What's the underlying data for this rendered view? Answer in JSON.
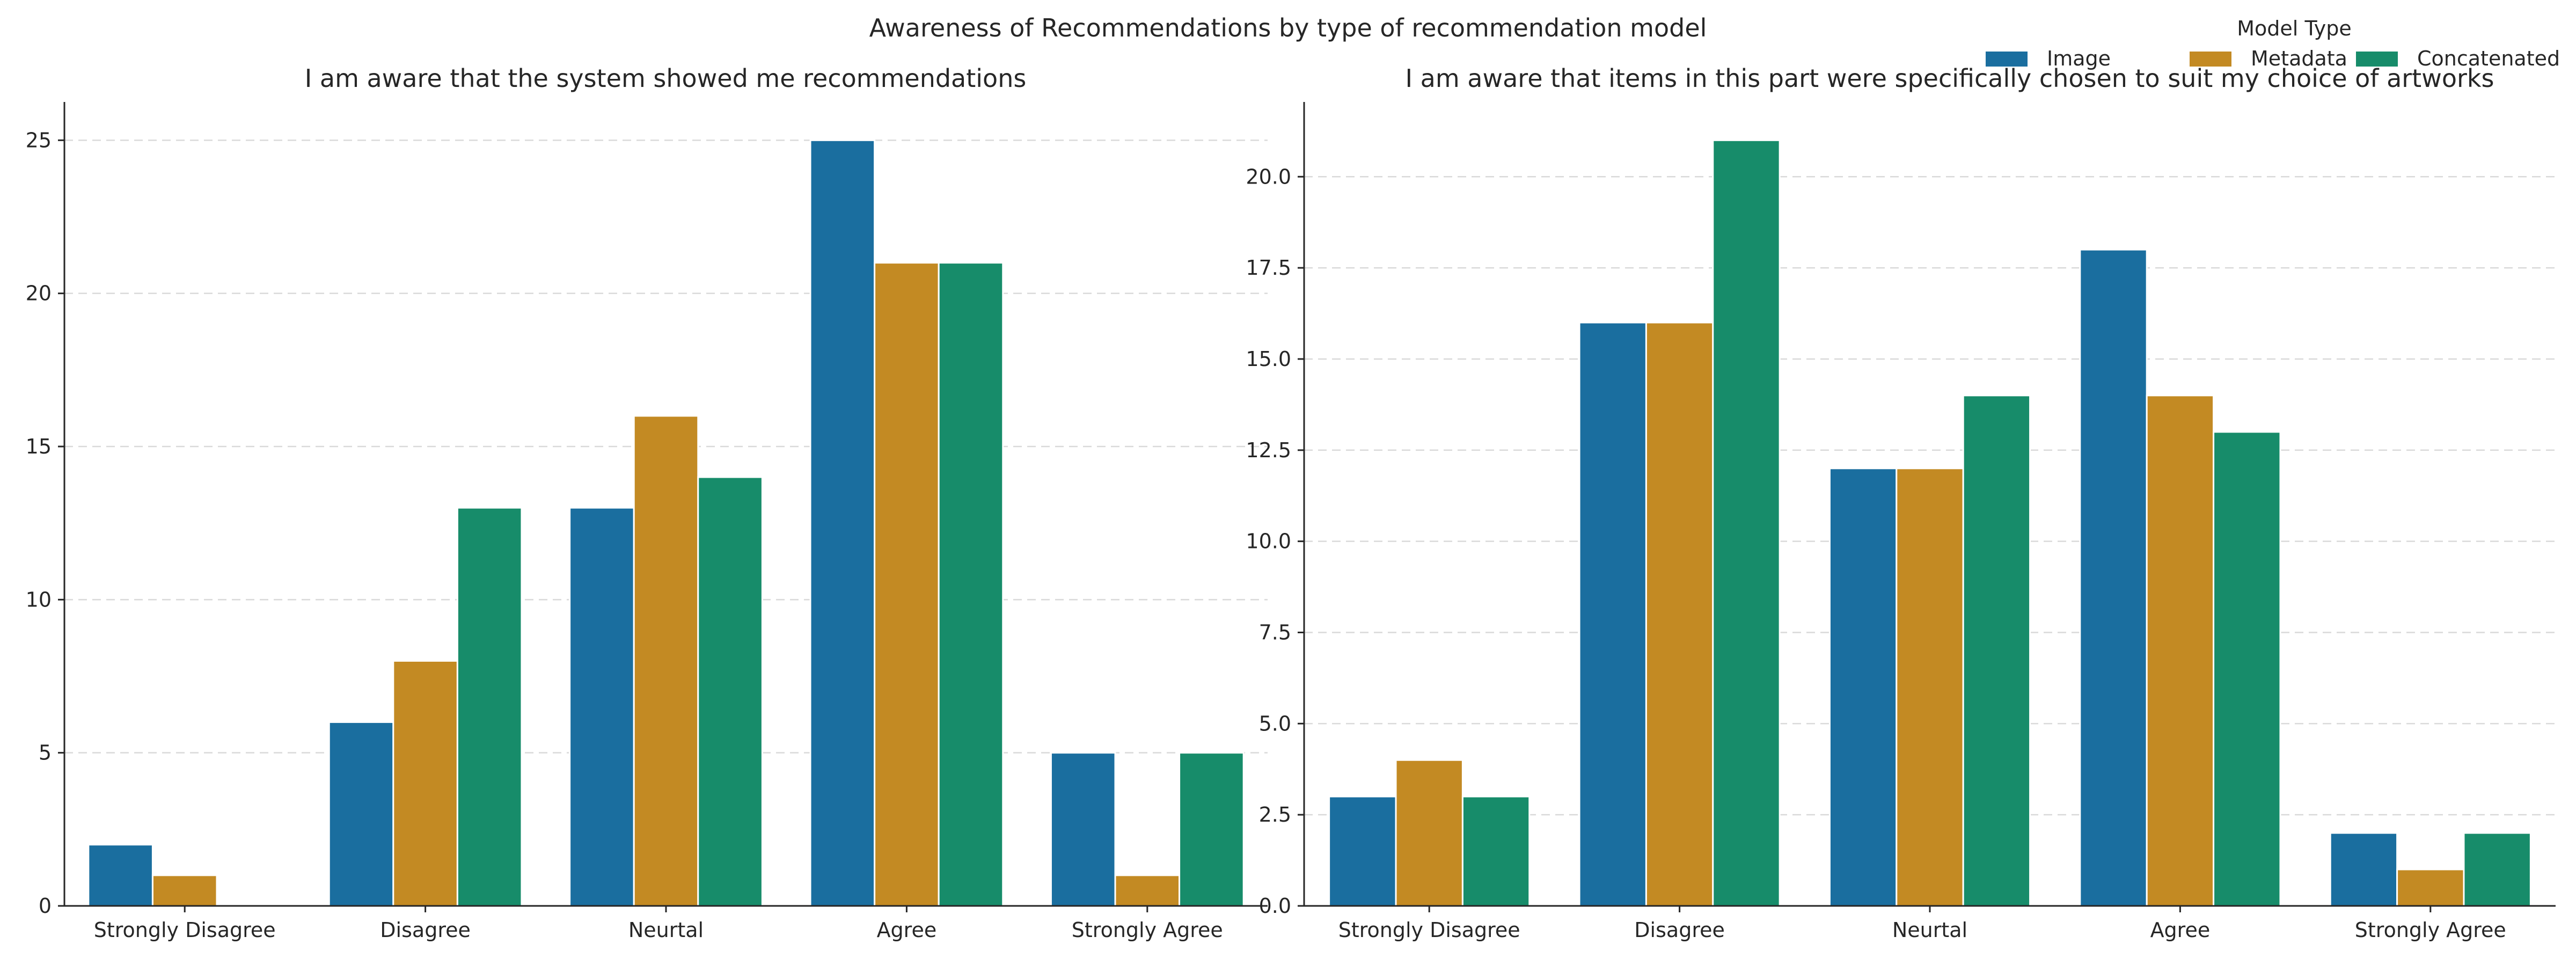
{
  "title": "Awareness of Recommendations by type of recommendation model",
  "legend": {
    "title": "Model Type",
    "placement": "upper-right",
    "items": [
      {
        "label": "Image",
        "color": "#1a6e9f"
      },
      {
        "label": "Metadata",
        "color": "#c38a23"
      },
      {
        "label": "Concatenated",
        "color": "#178c6a"
      }
    ]
  },
  "chart_data": [
    {
      "type": "bar",
      "title": "I am aware that the system showed me recommendations",
      "xlabel": "",
      "ylabel": "",
      "categories": [
        "Strongly Disagree",
        "Disagree",
        "Neurtal",
        "Agree",
        "Strongly Agree"
      ],
      "series": [
        {
          "name": "Image",
          "color": "#1a6e9f",
          "values": [
            2,
            6,
            13,
            25,
            5
          ]
        },
        {
          "name": "Metadata",
          "color": "#c38a23",
          "values": [
            1,
            8,
            16,
            21,
            1
          ]
        },
        {
          "name": "Concatenated",
          "color": "#178c6a",
          "values": [
            0,
            13,
            14,
            21,
            5
          ]
        }
      ],
      "yticks": [
        0,
        5,
        10,
        15,
        20,
        25
      ],
      "ylim": [
        0,
        26.25
      ],
      "grid": "y dashed"
    },
    {
      "type": "bar",
      "title": "I am aware that items in this part were specifically chosen to suit my choice of artworks",
      "xlabel": "",
      "ylabel": "",
      "categories": [
        "Strongly Disagree",
        "Disagree",
        "Neurtal",
        "Agree",
        "Strongly Agree"
      ],
      "series": [
        {
          "name": "Image",
          "color": "#1a6e9f",
          "values": [
            3,
            16,
            12,
            18,
            2
          ]
        },
        {
          "name": "Metadata",
          "color": "#c38a23",
          "values": [
            4,
            16,
            12,
            14,
            1
          ]
        },
        {
          "name": "Concatenated",
          "color": "#178c6a",
          "values": [
            3,
            21,
            14,
            13,
            2
          ]
        }
      ],
      "yticks": [
        "0.0",
        "2.5",
        "5.0",
        "7.5",
        "10.0",
        "12.5",
        "15.0",
        "17.5",
        "20.0"
      ],
      "ylim": [
        0,
        22.05
      ],
      "grid": "y dashed"
    }
  ]
}
